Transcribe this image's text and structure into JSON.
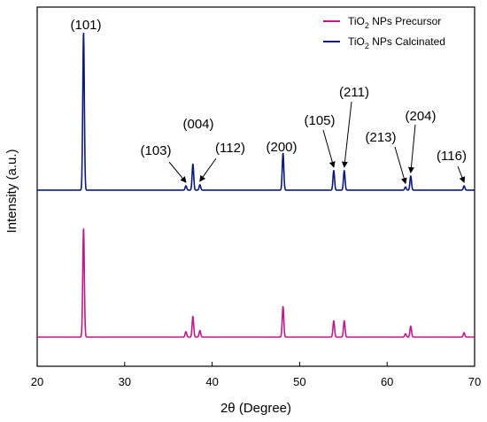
{
  "chart_data": {
    "type": "line",
    "xlabel": "2θ (Degree)",
    "ylabel": "Intensity (a.u.)",
    "xlim": [
      20,
      70
    ],
    "x_ticks": [
      "20",
      "30",
      "40",
      "50",
      "60",
      "70"
    ],
    "y_ticks_labeled": false,
    "grid": false,
    "legend_position": "top-right",
    "series": [
      {
        "name_parts": [
          "TiO",
          "2",
          " NPs Precursor"
        ],
        "color": "#c2188c",
        "baseline": 0,
        "peaks": [
          {
            "x": 25.3,
            "h": 1.0
          },
          {
            "x": 37.0,
            "h": 0.05
          },
          {
            "x": 37.8,
            "h": 0.19
          },
          {
            "x": 38.6,
            "h": 0.06
          },
          {
            "x": 48.1,
            "h": 0.28
          },
          {
            "x": 53.9,
            "h": 0.15
          },
          {
            "x": 55.1,
            "h": 0.15
          },
          {
            "x": 62.1,
            "h": 0.03
          },
          {
            "x": 62.7,
            "h": 0.1
          },
          {
            "x": 68.8,
            "h": 0.04
          }
        ]
      },
      {
        "name_parts": [
          "TiO",
          "2",
          " NPs Calcinated"
        ],
        "color": "#0a1a7a",
        "baseline": 1.35,
        "peaks": [
          {
            "x": 25.3,
            "h": 1.45
          },
          {
            "x": 37.0,
            "h": 0.04
          },
          {
            "x": 37.8,
            "h": 0.24
          },
          {
            "x": 38.6,
            "h": 0.05
          },
          {
            "x": 48.1,
            "h": 0.34
          },
          {
            "x": 53.9,
            "h": 0.18
          },
          {
            "x": 55.1,
            "h": 0.18
          },
          {
            "x": 62.1,
            "h": 0.03
          },
          {
            "x": 62.7,
            "h": 0.13
          },
          {
            "x": 68.8,
            "h": 0.04
          }
        ]
      }
    ],
    "annotations": [
      {
        "text": "(101)",
        "x": 25.3,
        "arrow": false
      },
      {
        "text": "(103)",
        "x": 37.0,
        "arrow": true
      },
      {
        "text": "(004)",
        "x": 37.8,
        "arrow": false
      },
      {
        "text": "(112)",
        "x": 38.6,
        "arrow": true
      },
      {
        "text": "(200)",
        "x": 48.1,
        "arrow": false
      },
      {
        "text": "(105)",
        "x": 53.9,
        "arrow": true
      },
      {
        "text": "(211)",
        "x": 55.1,
        "arrow": true
      },
      {
        "text": "(213)",
        "x": 62.1,
        "arrow": true
      },
      {
        "text": "(204)",
        "x": 62.7,
        "arrow": true
      },
      {
        "text": "(116)",
        "x": 68.8,
        "arrow": true
      }
    ]
  }
}
